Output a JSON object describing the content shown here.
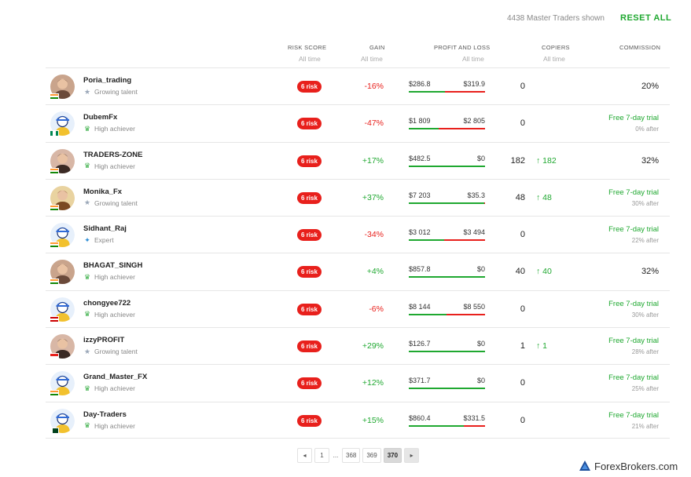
{
  "topbar": {
    "shown_text": "4438 Master Traders shown",
    "reset_label": "RESET ALL"
  },
  "header": {
    "risk": "RISK SCORE",
    "risk_sub": "All time",
    "gain": "GAIN",
    "gain_sub": "All time",
    "pl": "PROFIT AND LOSS",
    "pl_sub": "All time",
    "copiers": "COPIERS",
    "copiers_sub": "All time",
    "commission": "COMMISSION"
  },
  "colors": {
    "accent": "#1fa830",
    "risk": "#e8201c",
    "negative": "#e8201c"
  },
  "traders": [
    {
      "name": "Poria_trading",
      "level": "Growing talent",
      "level_icon": "star-icon",
      "flag": "india",
      "risk": "6 risk",
      "gain": "-16%",
      "gain_sign": "neg",
      "profit": "$286.8",
      "loss": "$319.9",
      "profit_share": 0.47,
      "copiers": "0",
      "copiers_delta": "",
      "commission": "20%",
      "trial": "",
      "after": ""
    },
    {
      "name": "DubemFx",
      "level": "High achiever",
      "level_icon": "trophy-icon",
      "flag": "nigeria",
      "risk": "6 risk",
      "gain": "-47%",
      "gain_sign": "neg",
      "profit": "$1 809",
      "loss": "$2 805",
      "profit_share": 0.39,
      "copiers": "0",
      "copiers_delta": "",
      "commission": "",
      "trial": "Free 7-day trial",
      "after": "0%  after"
    },
    {
      "name": "TRADERS-ZONE",
      "level": "High achiever",
      "level_icon": "trophy-icon",
      "flag": "india",
      "risk": "6 risk",
      "gain": "+17%",
      "gain_sign": "pos",
      "profit": "$482.5",
      "loss": "$0",
      "profit_share": 1.0,
      "copiers": "182",
      "copiers_delta": "↑ 182",
      "commission": "32%",
      "trial": "",
      "after": ""
    },
    {
      "name": "Monika_Fx",
      "level": "Growing talent",
      "level_icon": "star-icon",
      "flag": "india",
      "risk": "6 risk",
      "gain": "+37%",
      "gain_sign": "pos",
      "profit": "$7 203",
      "loss": "$35.3",
      "profit_share": 0.99,
      "copiers": "48",
      "copiers_delta": "↑ 48",
      "commission": "",
      "trial": "Free 7-day trial",
      "after": "30%  after"
    },
    {
      "name": "Sidhant_Raj",
      "level": "Expert",
      "level_icon": "expert-icon",
      "flag": "india",
      "risk": "6 risk",
      "gain": "-34%",
      "gain_sign": "neg",
      "profit": "$3 012",
      "loss": "$3 494",
      "profit_share": 0.46,
      "copiers": "0",
      "copiers_delta": "",
      "commission": "",
      "trial": "Free 7-day trial",
      "after": "22%  after"
    },
    {
      "name": "BHAGAT_SINGH",
      "level": "High achiever",
      "level_icon": "trophy-icon",
      "flag": "india",
      "risk": "6 risk",
      "gain": "+4%",
      "gain_sign": "pos",
      "profit": "$857.8",
      "loss": "$0",
      "profit_share": 1.0,
      "copiers": "40",
      "copiers_delta": "↑ 40",
      "commission": "32%",
      "trial": "",
      "after": ""
    },
    {
      "name": "chongyee722",
      "level": "High achiever",
      "level_icon": "trophy-icon",
      "flag": "malaysia",
      "risk": "6 risk",
      "gain": "-6%",
      "gain_sign": "neg",
      "profit": "$8 144",
      "loss": "$8 550",
      "profit_share": 0.49,
      "copiers": "0",
      "copiers_delta": "",
      "commission": "",
      "trial": "Free 7-day trial",
      "after": "30%  after"
    },
    {
      "name": "izzyPROFIT",
      "level": "Growing talent",
      "level_icon": "star-icon",
      "flag": "indonesia",
      "risk": "6 risk",
      "gain": "+29%",
      "gain_sign": "pos",
      "profit": "$126.7",
      "loss": "$0",
      "profit_share": 1.0,
      "copiers": "1",
      "copiers_delta": "↑ 1",
      "commission": "",
      "trial": "Free 7-day trial",
      "after": "28%  after"
    },
    {
      "name": "Grand_Master_FX",
      "level": "High achiever",
      "level_icon": "trophy-icon",
      "flag": "india",
      "risk": "6 risk",
      "gain": "+12%",
      "gain_sign": "pos",
      "profit": "$371.7",
      "loss": "$0",
      "profit_share": 1.0,
      "copiers": "0",
      "copiers_delta": "",
      "commission": "",
      "trial": "Free 7-day trial",
      "after": "25%  after"
    },
    {
      "name": "Day-Traders",
      "level": "High achiever",
      "level_icon": "trophy-icon",
      "flag": "pakistan",
      "risk": "6 risk",
      "gain": "+15%",
      "gain_sign": "pos",
      "profit": "$860.4",
      "loss": "$331.5",
      "profit_share": 0.72,
      "copiers": "0",
      "copiers_delta": "",
      "commission": "",
      "trial": "Free 7-day trial",
      "after": "21%  after"
    }
  ],
  "pagination": {
    "prev": "◂",
    "pages": [
      "1",
      "...",
      "368",
      "369",
      "370"
    ],
    "active": "370",
    "next": "▸"
  },
  "watermark": {
    "text": "ForexBrokers.com"
  }
}
